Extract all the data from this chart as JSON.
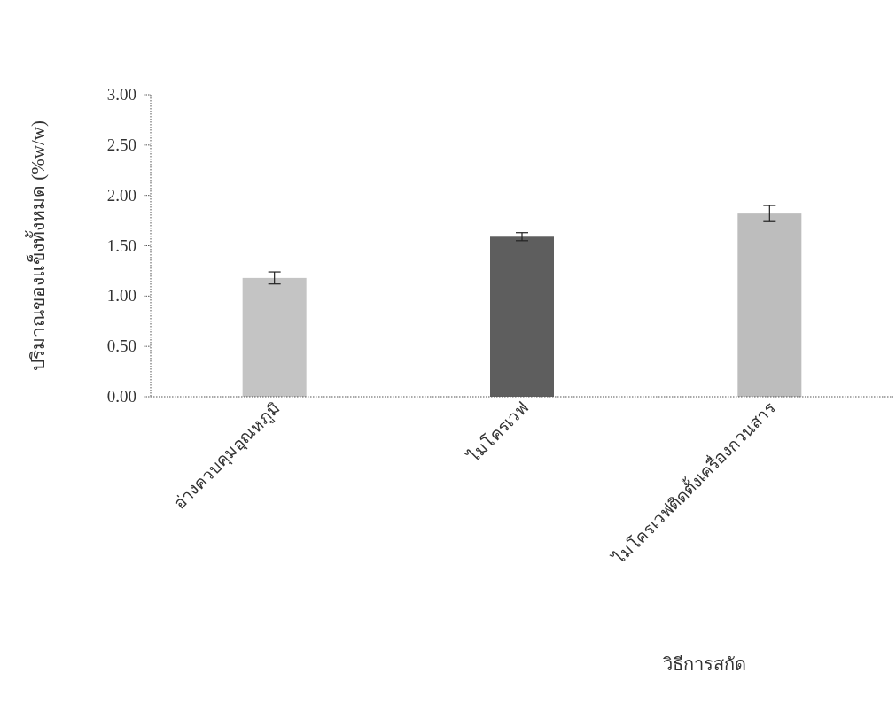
{
  "chart_data": {
    "type": "bar",
    "xlabel": "วิธีการสกัด",
    "ylabel": "ปริมาณของแข็งทั้งหมด (%w/w)",
    "categories": [
      "อ่างควบคุมอุณหภูมิ",
      "ไมโครเวฟ",
      "ไมโครเวฟติดตั้งเครื่องกวนสาร"
    ],
    "values": [
      1.18,
      1.59,
      1.82
    ],
    "errors": [
      0.06,
      0.04,
      0.08
    ],
    "colors": [
      "#c4c4c4",
      "#5e5e5e",
      "#bdbdbd"
    ],
    "ylim": [
      0,
      3
    ],
    "yticks": [
      {
        "value": 0,
        "label": "0.00"
      },
      {
        "value": 0.5,
        "label": "0.50"
      },
      {
        "value": 1,
        "label": "1.00"
      },
      {
        "value": 1.5,
        "label": "1.50"
      },
      {
        "value": 2,
        "label": "2.00"
      },
      {
        "value": 2.5,
        "label": "2.50"
      },
      {
        "value": 3,
        "label": "3.00"
      }
    ],
    "grid": false
  }
}
